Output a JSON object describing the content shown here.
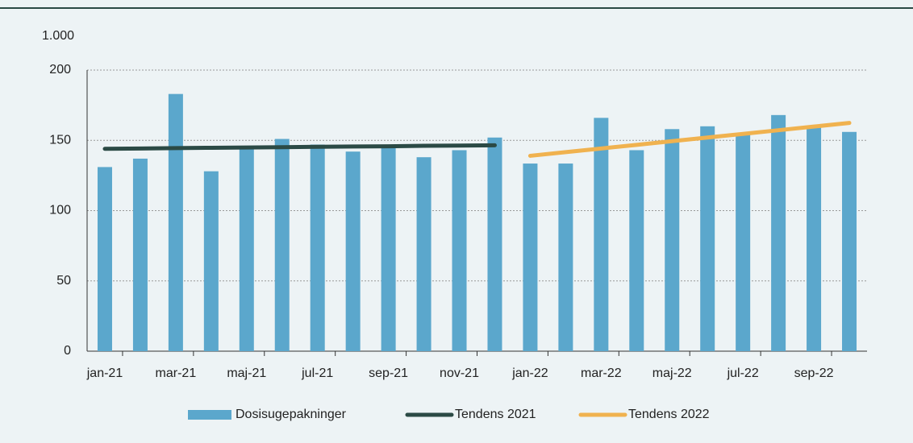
{
  "chart_data": {
    "type": "bar",
    "y_unit_label": "1.000",
    "categories": [
      "jan-21",
      null,
      "mar-21",
      null,
      "maj-21",
      null,
      "jul-21",
      null,
      "sep-21",
      null,
      "nov-21",
      null,
      "jan-22",
      null,
      "mar-22",
      null,
      "maj-22",
      null,
      "jul-22",
      null,
      "sep-22",
      null
    ],
    "series": [
      {
        "name": "Dosisugepakninger",
        "type": "bar",
        "color": "#5ba7cc",
        "values": [
          131,
          137,
          183,
          128,
          144,
          151,
          147,
          142,
          146,
          138,
          143,
          152,
          133.5,
          133.5,
          166,
          143,
          158,
          160,
          154,
          168,
          160,
          156
        ]
      },
      {
        "name": "Tendens 2021",
        "type": "line",
        "color": "#2b4a45",
        "values": [
          144,
          144.2,
          144.5,
          144.7,
          144.9,
          145.1,
          145.4,
          145.6,
          145.8,
          146.1,
          146.3,
          146.5,
          null,
          null,
          null,
          null,
          null,
          null,
          null,
          null,
          null,
          null
        ]
      },
      {
        "name": "Tendens 2022",
        "type": "line",
        "color": "#f0b24f",
        "values": [
          null,
          null,
          null,
          null,
          null,
          null,
          null,
          null,
          null,
          null,
          null,
          null,
          139,
          141.6,
          144.2,
          146.8,
          149.4,
          152,
          154.6,
          157.2,
          159.8,
          162.4
        ]
      }
    ],
    "ylim": [
      0,
      200
    ],
    "yticks": [
      0,
      50,
      100,
      150,
      200
    ],
    "grid": true
  }
}
